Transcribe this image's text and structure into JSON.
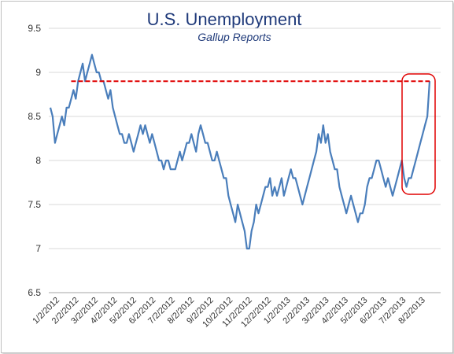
{
  "chart_data": {
    "type": "line",
    "title": "U.S. Unemployment",
    "subtitle": "Gallup Reports",
    "xlabel": "",
    "ylabel": "",
    "ylim": [
      6.5,
      9.5
    ],
    "yticks": [
      "6.5",
      "7",
      "7.5",
      "8",
      "8.5",
      "9",
      "9.5"
    ],
    "grid": "horizontal",
    "x_tick_labels": [
      "1/2/2012",
      "2/2/2012",
      "3/2/2012",
      "4/2/2012",
      "5/2/2012",
      "6/2/2012",
      "7/2/2012",
      "8/2/2012",
      "9/2/2012",
      "10/2/2012",
      "11/2/2012",
      "12/2/2012",
      "1/2/2013",
      "2/2/2013",
      "3/2/2013",
      "4/2/2013",
      "5/2/2013",
      "6/2/2013",
      "7/2/2013",
      "8/2/2013"
    ],
    "series_color": "#4a7ebb",
    "reference_line": {
      "y": 8.9,
      "from_index": 9,
      "color": "#e00000"
    },
    "highlight_box_color": "#e00000",
    "series": [
      {
        "values": [
          8.6,
          8.5,
          8.2,
          8.3,
          8.4,
          8.5,
          8.4,
          8.6,
          8.6,
          8.7,
          8.8,
          8.7,
          8.9,
          9.0,
          9.1,
          8.9,
          9.0,
          9.1,
          9.2,
          9.1,
          9.0,
          9.0,
          8.9,
          8.9,
          8.8,
          8.7,
          8.8,
          8.6,
          8.5,
          8.4,
          8.3,
          8.3,
          8.2,
          8.2,
          8.3,
          8.2,
          8.1,
          8.2,
          8.3,
          8.4,
          8.3,
          8.4,
          8.3,
          8.2,
          8.3,
          8.2,
          8.1,
          8.0,
          8.0,
          7.9,
          8.0,
          8.0,
          7.9,
          7.9,
          7.9,
          8.0,
          8.1,
          8.0,
          8.1,
          8.2,
          8.2,
          8.3,
          8.2,
          8.1,
          8.3,
          8.4,
          8.3,
          8.2,
          8.2,
          8.1,
          8.0,
          8.0,
          8.1,
          8.0,
          7.9,
          7.8,
          7.8,
          7.6,
          7.5,
          7.4,
          7.3,
          7.5,
          7.4,
          7.3,
          7.2,
          7.0,
          7.0,
          7.2,
          7.3,
          7.5,
          7.4,
          7.5,
          7.6,
          7.7,
          7.7,
          7.8,
          7.6,
          7.7,
          7.6,
          7.7,
          7.8,
          7.6,
          7.7,
          7.8,
          7.9,
          7.8,
          7.8,
          7.7,
          7.6,
          7.5,
          7.6,
          7.7,
          7.8,
          7.9,
          8.0,
          8.1,
          8.3,
          8.2,
          8.4,
          8.2,
          8.3,
          8.1,
          8.0,
          7.9,
          7.9,
          7.7,
          7.6,
          7.5,
          7.4,
          7.5,
          7.6,
          7.5,
          7.4,
          7.3,
          7.4,
          7.4,
          7.5,
          7.7,
          7.8,
          7.8,
          7.9,
          8.0,
          8.0,
          7.9,
          7.8,
          7.7,
          7.8,
          7.7,
          7.6,
          7.7,
          7.8,
          7.9,
          8.0,
          7.8,
          7.7,
          7.8,
          7.8,
          7.9,
          8.0,
          8.1,
          8.2,
          8.3,
          8.4,
          8.5,
          8.9
        ]
      }
    ]
  }
}
